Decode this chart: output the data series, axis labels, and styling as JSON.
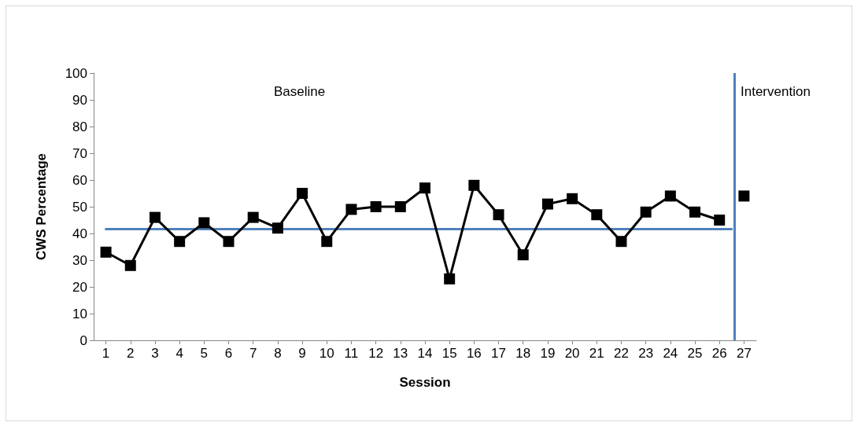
{
  "chart_data": {
    "type": "line",
    "xlabel": "Session",
    "ylabel": "CWS Percentage",
    "annotations": [
      "Baseline",
      "Intervention"
    ],
    "xlim": [
      0.5,
      27.5
    ],
    "xticks": [
      1,
      2,
      3,
      4,
      5,
      6,
      7,
      8,
      9,
      10,
      11,
      12,
      13,
      14,
      15,
      16,
      17,
      18,
      19,
      20,
      21,
      22,
      23,
      24,
      25,
      26,
      27
    ],
    "ylim": [
      0,
      100
    ],
    "yticks": [
      0,
      10,
      20,
      30,
      40,
      50,
      60,
      70,
      80,
      90,
      100
    ],
    "grid": false,
    "marker": "square",
    "line_style": "solid",
    "series": [
      {
        "color": "#000000",
        "x": [
          1,
          2,
          3,
          4,
          5,
          6,
          7,
          8,
          9,
          10,
          11,
          12,
          13,
          14,
          15,
          16,
          17,
          18,
          19,
          20,
          21,
          22,
          23,
          24,
          25,
          26
        ],
        "values": [
          33,
          28,
          46,
          37,
          44,
          37,
          46,
          42,
          55,
          37,
          49,
          50,
          50,
          57,
          23,
          58,
          47,
          32,
          51,
          53,
          47,
          37,
          48,
          54,
          48,
          45
        ]
      },
      {
        "color": "#000000",
        "x": [
          27
        ],
        "values": [
          54
        ]
      },
      {
        "color": "#4f81bd",
        "marker": "none",
        "x": [
          1,
          26.5
        ],
        "values": [
          41.6,
          41.6
        ]
      }
    ],
    "ref_lines": [
      {
        "axis": "x",
        "value": 26.6,
        "color": "#4f81bd"
      }
    ]
  }
}
